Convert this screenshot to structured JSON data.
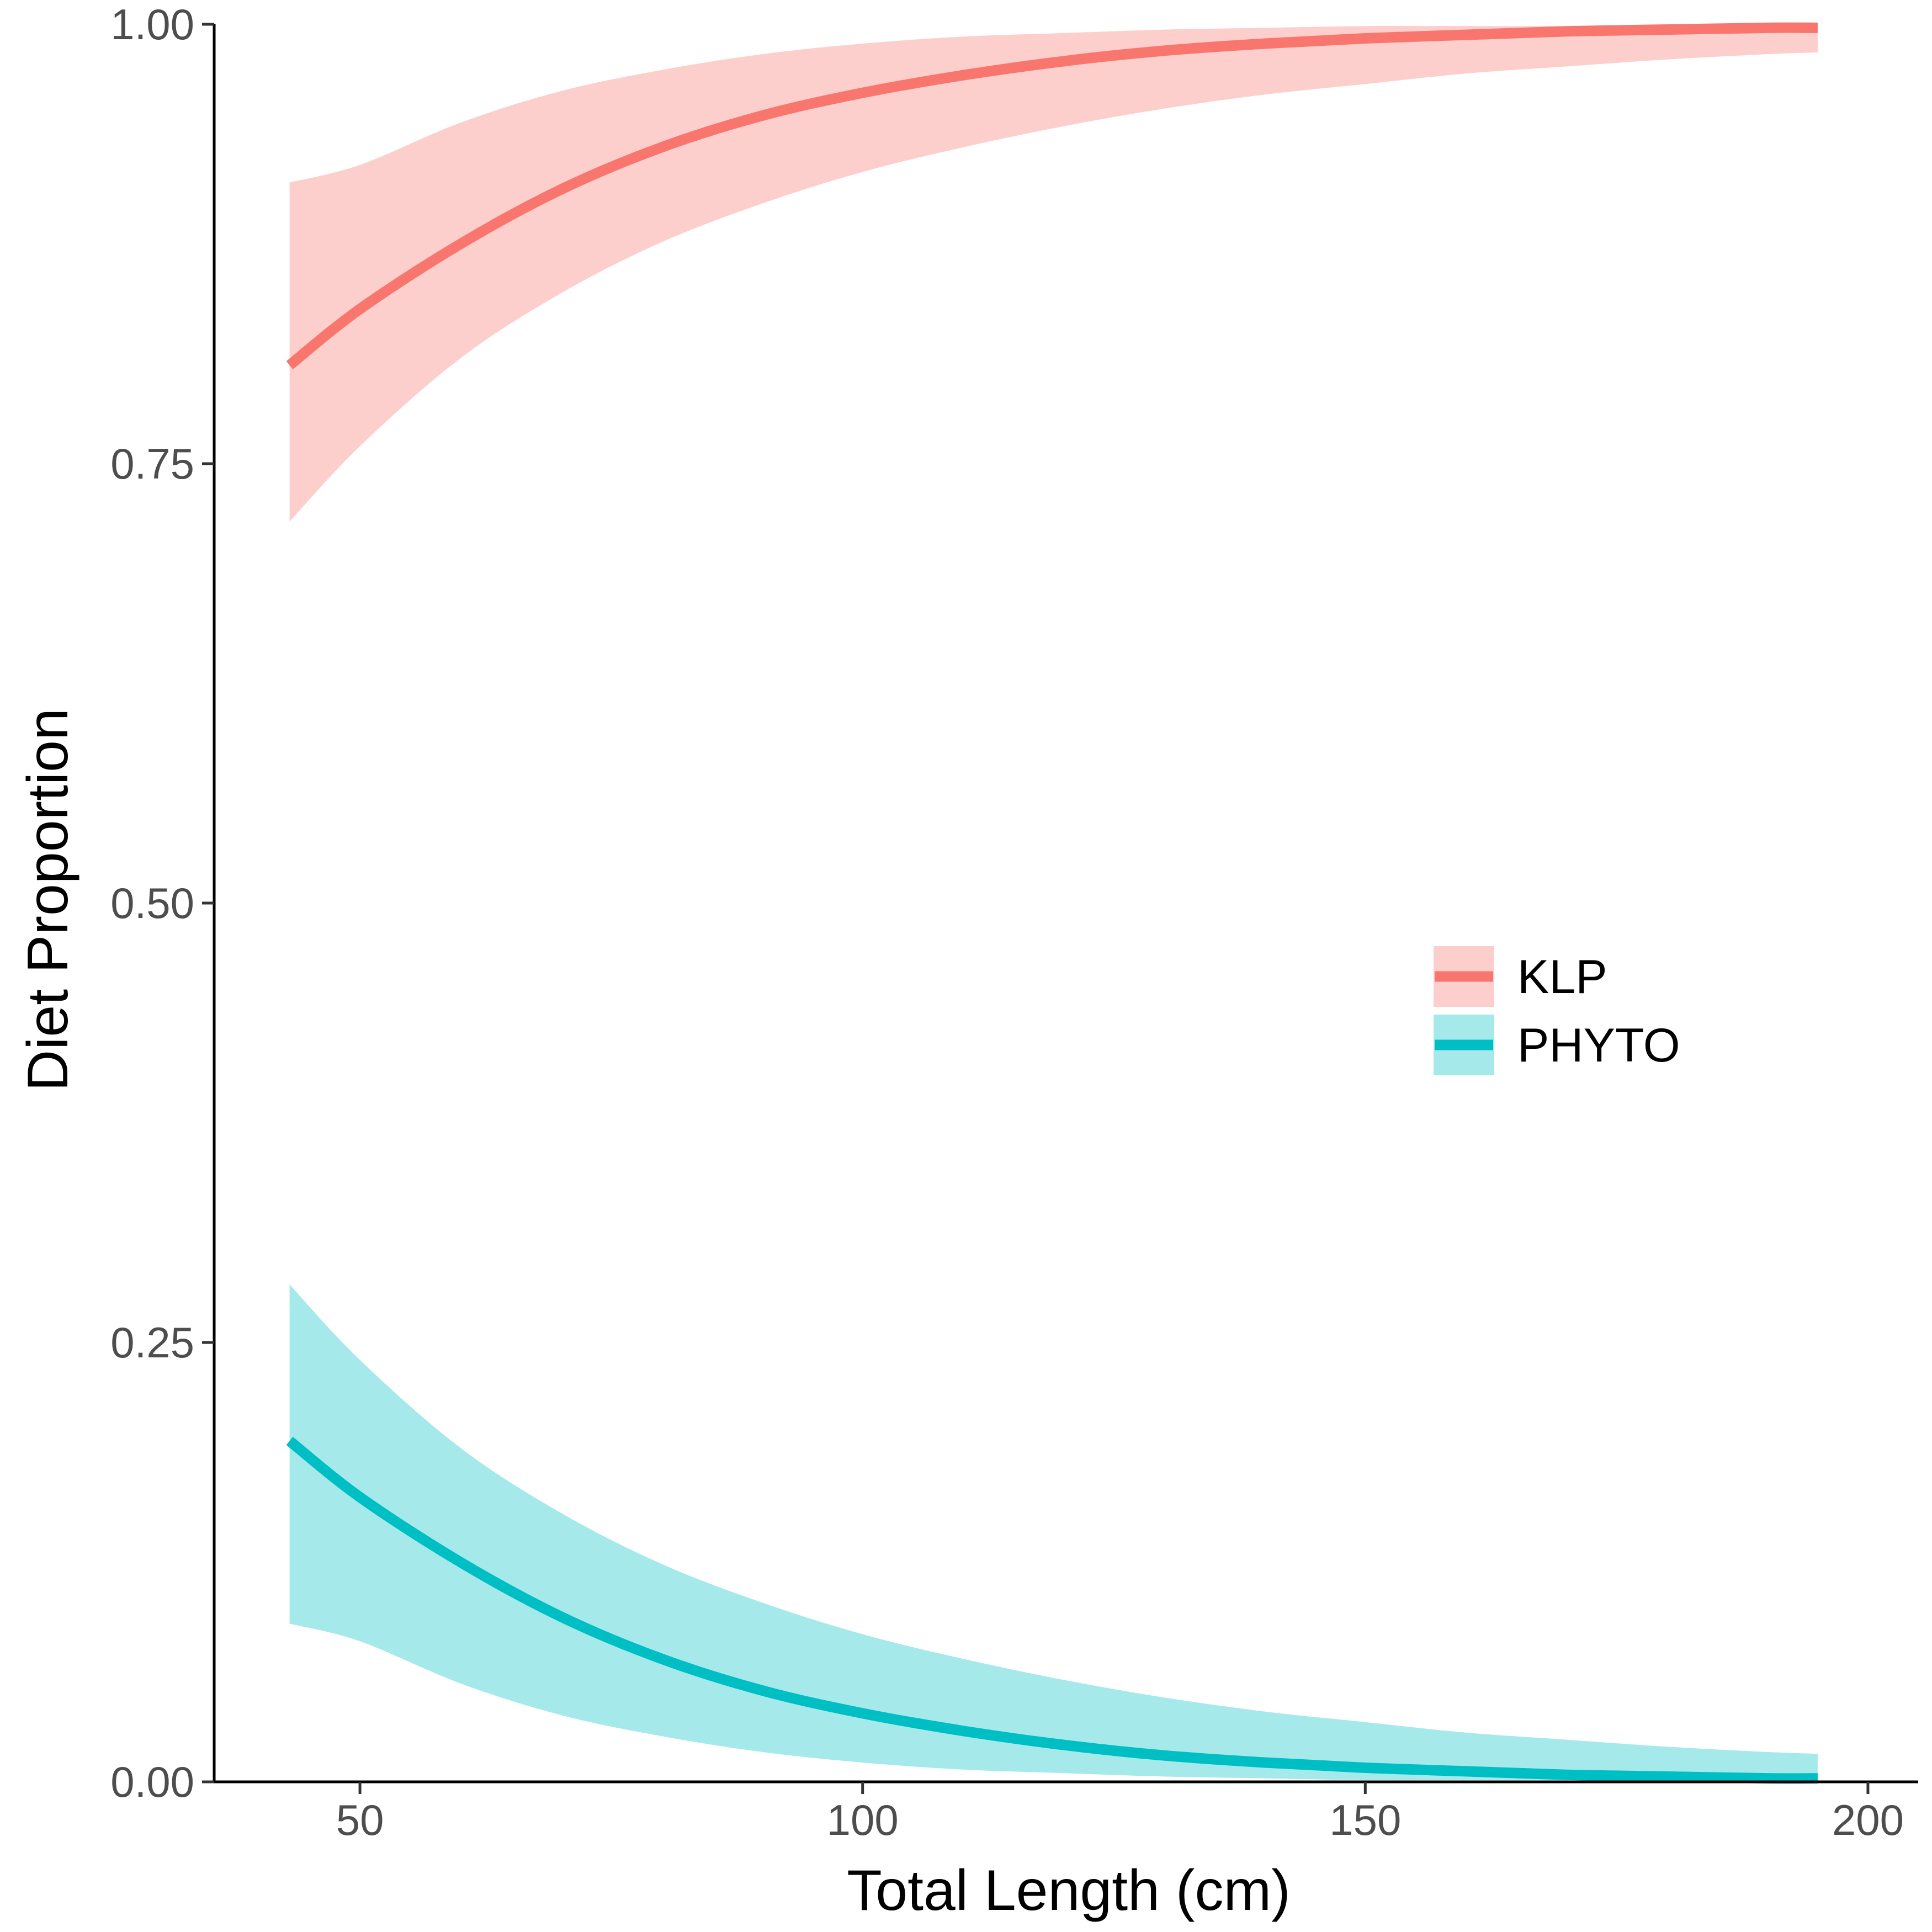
{
  "chart_data": {
    "type": "line",
    "xlabel": "Total Length (cm)",
    "ylabel": "Diet Proportion",
    "xlim": [
      35.5,
      205
    ],
    "ylim": [
      0,
      1
    ],
    "x_ticks": [
      50,
      100,
      150,
      200
    ],
    "x_tick_labels": [
      "50",
      "100",
      "150",
      "200"
    ],
    "y_ticks": [
      0,
      0.25,
      0.5,
      0.75,
      1
    ],
    "y_tick_labels": [
      "0.00",
      "0.25",
      "0.50",
      "0.75",
      "1.00"
    ],
    "grid": false,
    "legend_position": "right",
    "x": [
      43,
      50,
      60,
      70,
      80,
      90,
      100,
      110,
      120,
      130,
      140,
      150,
      160,
      170,
      180,
      190,
      195
    ],
    "series": [
      {
        "name": "KLP",
        "color": "#F8766D",
        "band_color": "#FCCFCC",
        "values": [
          0.806,
          0.838,
          0.875,
          0.906,
          0.93,
          0.948,
          0.961,
          0.971,
          0.979,
          0.985,
          0.989,
          0.992,
          0.994,
          0.996,
          0.997,
          0.998,
          0.998
        ],
        "lower": [
          0.717,
          0.76,
          0.81,
          0.847,
          0.876,
          0.898,
          0.916,
          0.93,
          0.942,
          0.952,
          0.96,
          0.966,
          0.972,
          0.976,
          0.98,
          0.983,
          0.984
        ],
        "upper": [
          0.91,
          0.92,
          0.944,
          0.962,
          0.974,
          0.983,
          0.989,
          0.993,
          0.995,
          0.997,
          0.998,
          0.999,
          0.999,
          0.999,
          1.0,
          1.0,
          1.0
        ]
      },
      {
        "name": "PHYTO",
        "color": "#00BFC4",
        "band_color": "#A6E9EB",
        "values": [
          0.194,
          0.162,
          0.125,
          0.094,
          0.07,
          0.052,
          0.039,
          0.029,
          0.021,
          0.015,
          0.011,
          0.008,
          0.006,
          0.004,
          0.003,
          0.002,
          0.002
        ],
        "lower": [
          0.09,
          0.08,
          0.056,
          0.038,
          0.026,
          0.017,
          0.011,
          0.007,
          0.005,
          0.003,
          0.002,
          0.001,
          0.001,
          0.001,
          0.0,
          0.0,
          0.0
        ],
        "upper": [
          0.283,
          0.24,
          0.19,
          0.153,
          0.124,
          0.102,
          0.084,
          0.07,
          0.058,
          0.048,
          0.04,
          0.034,
          0.028,
          0.024,
          0.02,
          0.017,
          0.016
        ]
      }
    ]
  }
}
